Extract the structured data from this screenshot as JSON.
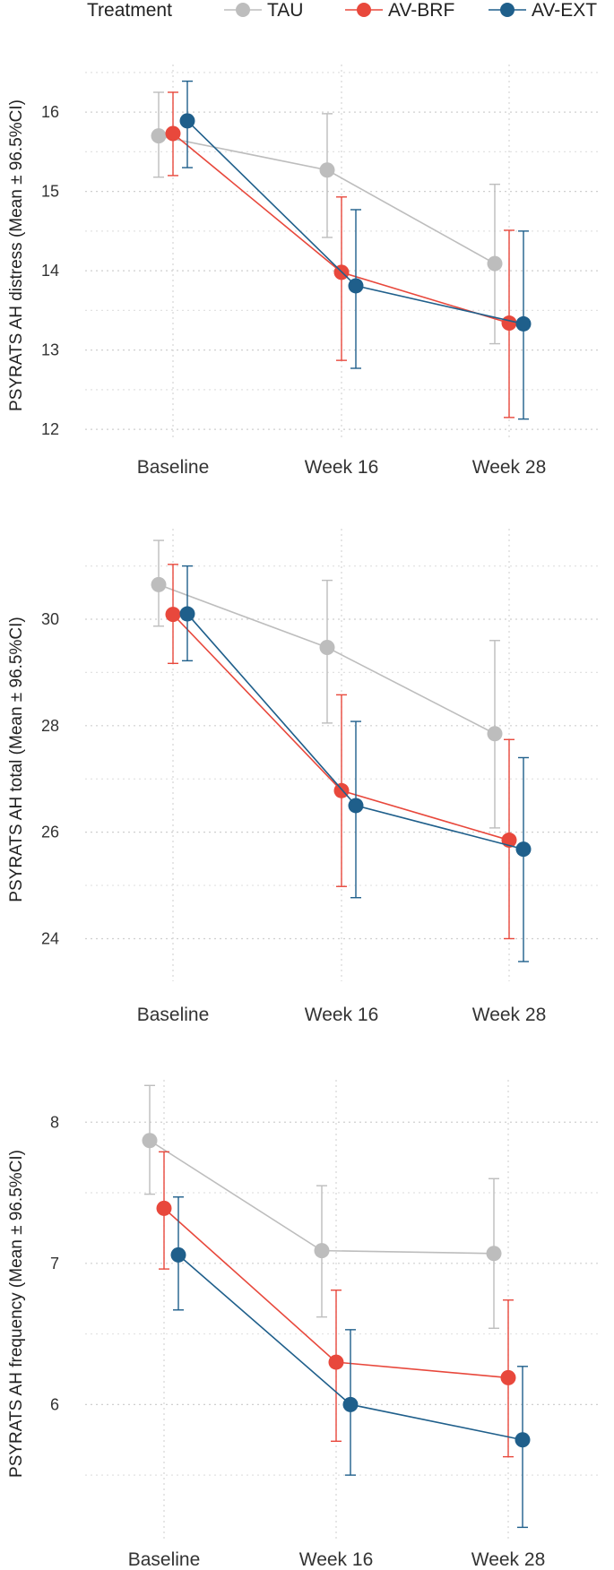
{
  "legend": {
    "title": "Treatment",
    "items": [
      {
        "name": "TAU",
        "color": "#bdbdbd"
      },
      {
        "name": "AV-BRF",
        "color": "#e8483c"
      },
      {
        "name": "AV-EXT",
        "color": "#1f5f8b"
      }
    ]
  },
  "chart_data": [
    {
      "type": "line",
      "title": "",
      "xlabel": "",
      "ylabel": "PSYRATS AH distress (Mean ± 96.5%CI)",
      "categories": [
        "Baseline",
        "Week 16",
        "Week 28"
      ],
      "yticks": [
        12,
        13,
        14,
        15,
        16
      ],
      "ylim": [
        11.9,
        16.6
      ],
      "series": [
        {
          "name": "TAU",
          "values": [
            15.7,
            15.27,
            14.09
          ],
          "lower": [
            15.18,
            14.42,
            13.08
          ],
          "upper": [
            16.25,
            15.98,
            15.09
          ]
        },
        {
          "name": "AV-BRF",
          "values": [
            15.73,
            13.98,
            13.34
          ],
          "lower": [
            15.2,
            12.87,
            12.15
          ],
          "upper": [
            16.25,
            14.93,
            14.51
          ]
        },
        {
          "name": "AV-EXT",
          "values": [
            15.89,
            13.81,
            13.33
          ],
          "lower": [
            15.3,
            12.77,
            12.13
          ],
          "upper": [
            16.39,
            14.77,
            14.5
          ]
        }
      ]
    },
    {
      "type": "line",
      "title": "",
      "xlabel": "",
      "ylabel": "PSYRATS AH total (Mean ± 96.5%CI)",
      "categories": [
        "Baseline",
        "Week 16",
        "Week 28"
      ],
      "yticks": [
        24,
        26,
        28,
        30
      ],
      "ylim": [
        23.2,
        31.7
      ],
      "series": [
        {
          "name": "TAU",
          "values": [
            30.65,
            29.47,
            27.85
          ],
          "lower": [
            29.87,
            28.05,
            26.08
          ],
          "upper": [
            31.48,
            30.73,
            29.6
          ]
        },
        {
          "name": "AV-BRF",
          "values": [
            30.09,
            26.78,
            25.85
          ],
          "lower": [
            29.17,
            24.98,
            24.0
          ],
          "upper": [
            31.03,
            28.58,
            27.74
          ]
        },
        {
          "name": "AV-EXT",
          "values": [
            30.1,
            26.5,
            25.68
          ],
          "lower": [
            29.22,
            24.77,
            23.57
          ],
          "upper": [
            31.0,
            28.08,
            27.4
          ]
        }
      ]
    },
    {
      "type": "line",
      "title": "",
      "xlabel": "",
      "ylabel": "PSYRATS AH frequency (Mean ± 96.5%CI)",
      "categories": [
        "Baseline",
        "Week 16",
        "Week 28"
      ],
      "yticks": [
        6,
        7,
        8
      ],
      "ylim": [
        5.05,
        8.3
      ],
      "series": [
        {
          "name": "TAU",
          "values": [
            7.87,
            7.09,
            7.07
          ],
          "lower": [
            7.49,
            6.62,
            6.54
          ],
          "upper": [
            8.26,
            7.55,
            7.6
          ]
        },
        {
          "name": "AV-BRF",
          "values": [
            7.39,
            6.3,
            6.19
          ],
          "lower": [
            6.96,
            5.74,
            5.63
          ],
          "upper": [
            7.79,
            6.81,
            6.74
          ]
        },
        {
          "name": "AV-EXT",
          "values": [
            7.06,
            6.0,
            5.75
          ],
          "lower": [
            6.67,
            5.5,
            5.13
          ],
          "upper": [
            7.47,
            6.53,
            6.27
          ]
        }
      ]
    }
  ]
}
